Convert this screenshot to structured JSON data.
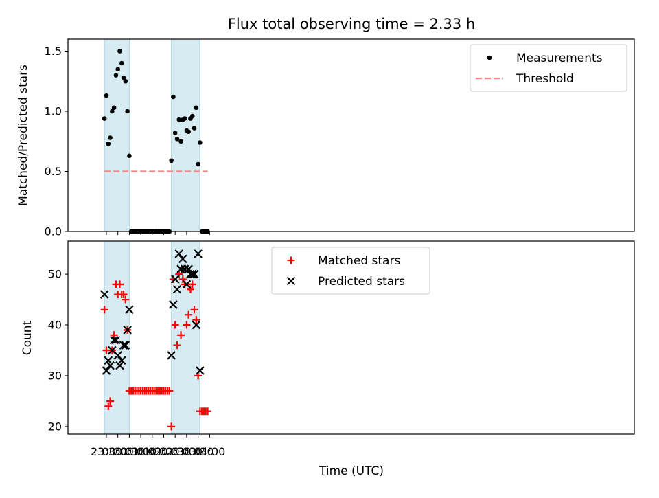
{
  "figure": {
    "title": "Flux total observing time = 2.33 h",
    "xlabel": "Time (UTC)",
    "xtick_labels": [
      "23:30",
      "00:00",
      "00:30",
      "01:00",
      "01:30",
      "02:00",
      "02:30",
      "03:00",
      "03:30",
      "04:00"
    ]
  },
  "chart_data": [
    {
      "type": "scatter",
      "ylabel": "Matched/Predicted stars",
      "ylim": [
        0,
        1.6
      ],
      "yticks": [
        0.0,
        0.5,
        1.0,
        1.5
      ],
      "ytick_labels": [
        "0.0",
        "0.5",
        "1.0",
        "1.5"
      ],
      "shaded_intervals": [
        [
          "23:25",
          "00:30"
        ],
        [
          "02:20",
          "03:34"
        ]
      ],
      "shade_color": "#add8e6",
      "legend_position": "upper right",
      "series": [
        {
          "name": "Measurements",
          "marker": "dot",
          "color": "#000000",
          "x": [
            "23:25",
            "23:30",
            "23:35",
            "23:40",
            "23:45",
            "23:50",
            "23:55",
            "00:00",
            "00:05",
            "00:10",
            "00:15",
            "00:20",
            "00:25",
            "00:30",
            "00:35",
            "00:40",
            "00:45",
            "00:50",
            "00:55",
            "01:00",
            "01:05",
            "01:10",
            "01:15",
            "01:20",
            "01:25",
            "01:30",
            "01:35",
            "01:40",
            "01:45",
            "01:50",
            "01:55",
            "02:00",
            "02:05",
            "02:10",
            "02:15",
            "02:20",
            "02:25",
            "02:30",
            "02:35",
            "02:40",
            "02:45",
            "02:50",
            "02:55",
            "03:00",
            "03:05",
            "03:10",
            "03:15",
            "03:20",
            "03:25",
            "03:30",
            "03:35",
            "03:40",
            "03:45",
            "03:50",
            "03:55"
          ],
          "y": [
            0.94,
            1.13,
            0.73,
            0.78,
            1.0,
            1.03,
            1.3,
            1.35,
            1.5,
            1.4,
            1.28,
            1.25,
            1.0,
            0.63,
            0,
            0,
            0,
            0,
            0,
            0,
            0,
            0,
            0,
            0,
            0,
            0,
            0,
            0,
            0,
            0,
            0,
            0,
            0,
            0,
            0,
            0.59,
            1.12,
            0.82,
            0.77,
            0.93,
            0.75,
            0.93,
            0.94,
            0.84,
            0.83,
            0.94,
            0.96,
            0.86,
            1.03,
            0.56,
            0.74,
            0,
            0,
            0,
            0
          ]
        },
        {
          "name": "Threshold",
          "marker": "dashed-line",
          "color": "#ff8080",
          "x": [
            "23:25",
            "03:55"
          ],
          "y": [
            0.5,
            0.5
          ]
        }
      ]
    },
    {
      "type": "scatter",
      "ylabel": "Count",
      "ylim": [
        18.5,
        56.5
      ],
      "yticks": [
        20,
        30,
        40,
        50
      ],
      "ytick_labels": [
        "20",
        "30",
        "40",
        "50"
      ],
      "shaded_intervals": [
        [
          "23:25",
          "00:30"
        ],
        [
          "02:20",
          "03:34"
        ]
      ],
      "shade_color": "#add8e6",
      "legend_position": "upper center",
      "series": [
        {
          "name": "Matched stars",
          "marker": "plus",
          "color": "#ff0000",
          "x": [
            "23:25",
            "23:30",
            "23:35",
            "23:40",
            "23:45",
            "23:50",
            "23:55",
            "00:00",
            "00:05",
            "00:10",
            "00:15",
            "00:20",
            "00:25",
            "00:30",
            "00:35",
            "00:40",
            "00:45",
            "00:50",
            "00:55",
            "01:00",
            "01:05",
            "01:10",
            "01:15",
            "01:20",
            "01:25",
            "01:30",
            "01:35",
            "01:40",
            "01:45",
            "01:50",
            "01:55",
            "02:00",
            "02:05",
            "02:10",
            "02:15",
            "02:20",
            "02:25",
            "02:30",
            "02:35",
            "02:40",
            "02:45",
            "02:50",
            "02:55",
            "03:00",
            "03:05",
            "03:10",
            "03:15",
            "03:20",
            "03:25",
            "03:30",
            "03:35",
            "03:40",
            "03:45",
            "03:50",
            "03:55"
          ],
          "y": [
            43,
            35,
            24,
            25,
            35,
            38,
            48,
            46,
            48,
            46,
            46,
            45,
            39,
            27,
            27,
            27,
            27,
            27,
            27,
            27,
            27,
            27,
            27,
            27,
            27,
            27,
            27,
            27,
            27,
            27,
            27,
            27,
            27,
            27,
            27,
            20,
            49,
            40,
            36,
            50,
            38,
            49,
            48,
            40,
            42,
            47,
            48,
            43,
            41,
            30,
            23,
            23,
            23,
            23,
            23
          ]
        },
        {
          "name": "Predicted stars",
          "marker": "x",
          "color": "#000000",
          "x": [
            "23:25",
            "23:30",
            "23:35",
            "23:40",
            "23:45",
            "23:50",
            "23:55",
            "00:00",
            "00:05",
            "00:10",
            "00:15",
            "00:20",
            "00:25",
            "00:30",
            "02:20",
            "02:25",
            "02:30",
            "02:35",
            "02:40",
            "02:45",
            "02:50",
            "02:55",
            "03:00",
            "03:05",
            "03:10",
            "03:15",
            "03:20",
            "03:25",
            "03:30",
            "03:35"
          ],
          "y": [
            46,
            31,
            33,
            32,
            35,
            37,
            37,
            34,
            32,
            33,
            36,
            36,
            39,
            43,
            34,
            44,
            49,
            47,
            54,
            51,
            53,
            51,
            48,
            51,
            50,
            50,
            50,
            40,
            54,
            31
          ]
        }
      ]
    }
  ]
}
